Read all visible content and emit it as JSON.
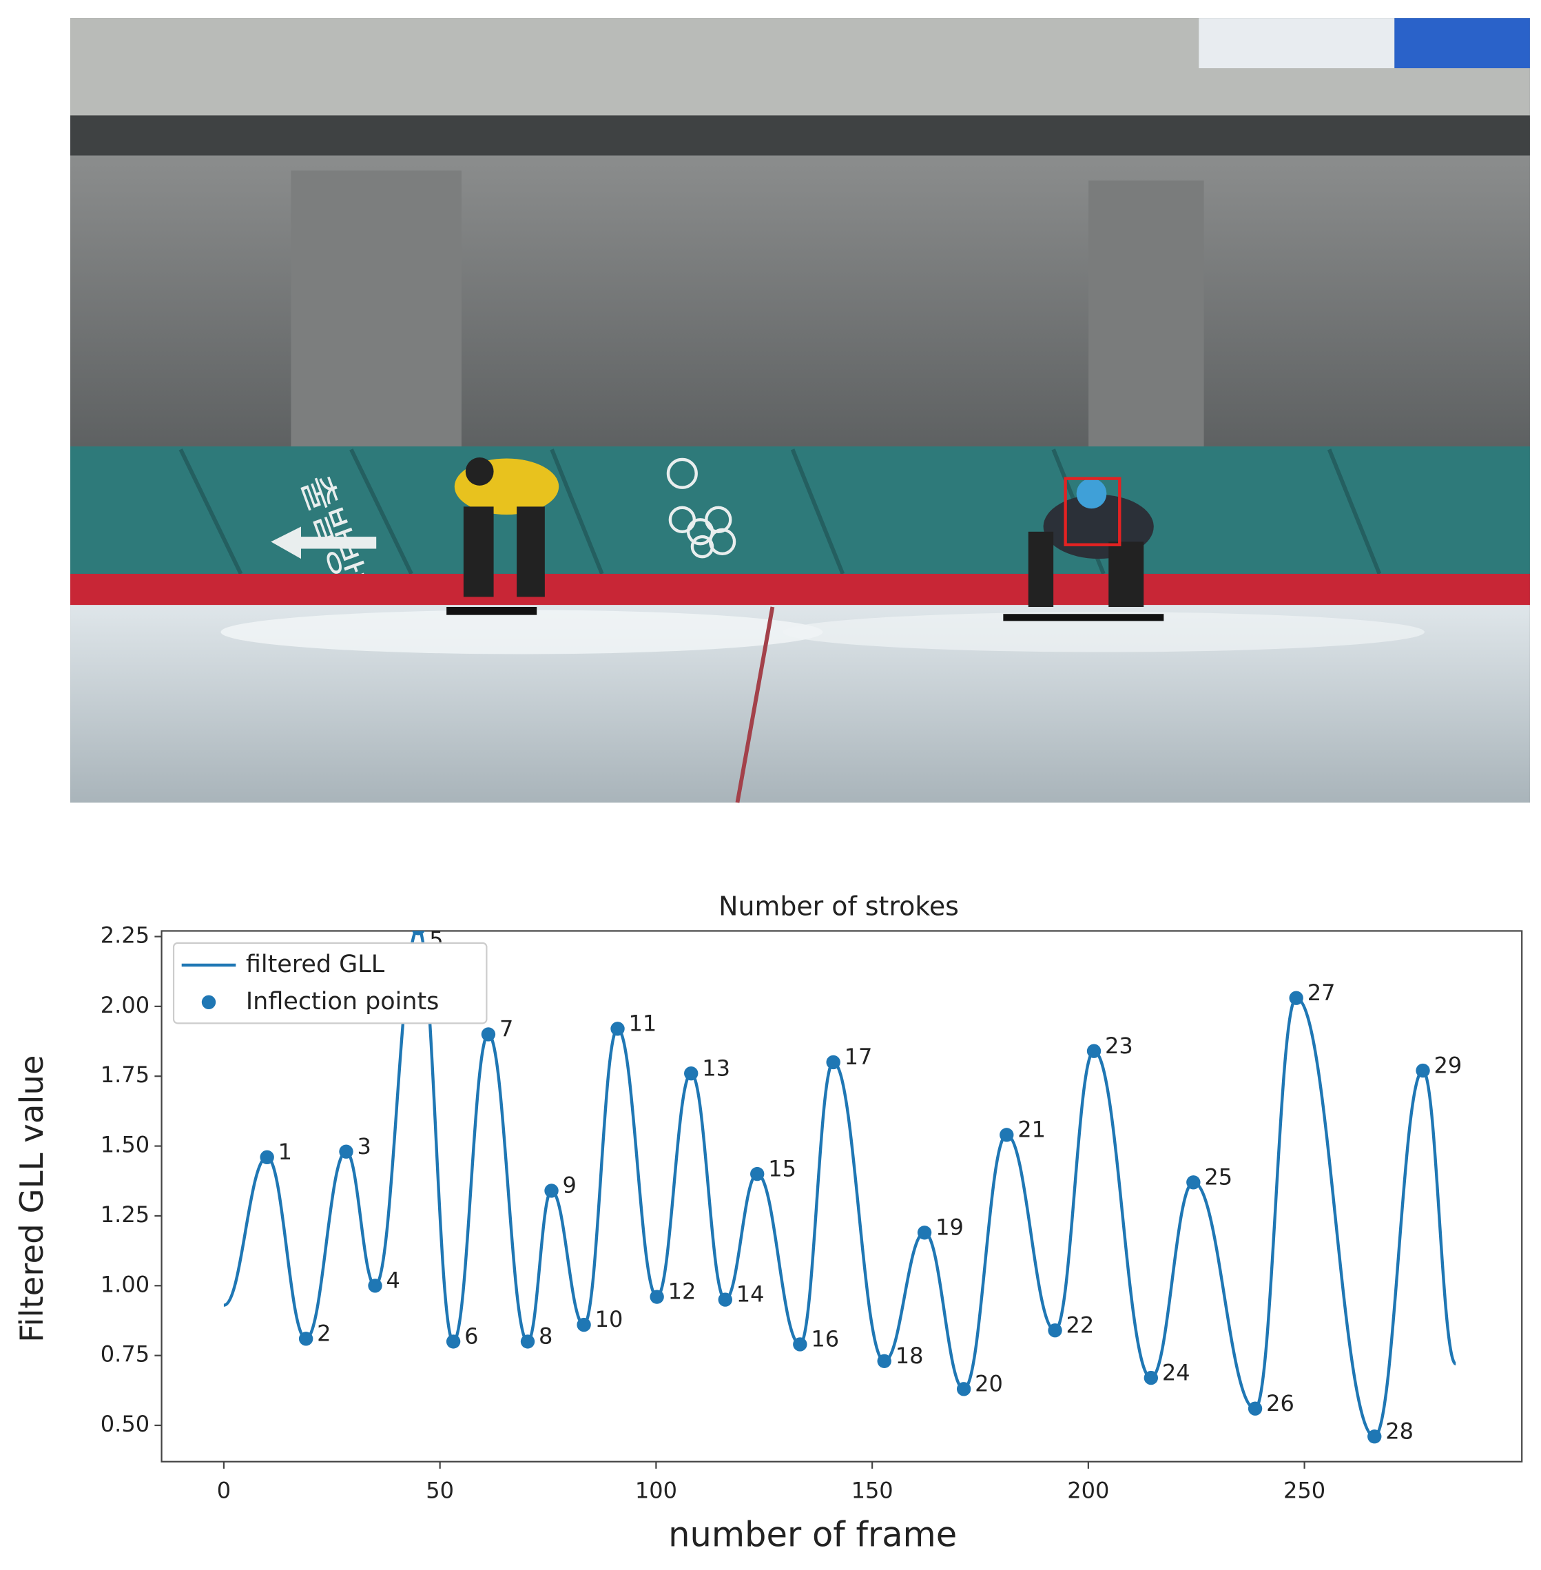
{
  "photo": {
    "sign_text": "출발방향"
  },
  "chart_data": {
    "type": "line",
    "title": "Number of strokes",
    "x_label": "number of frame",
    "y_label": "Filtered GLL value",
    "xlim": [
      -14.4,
      300.3
    ],
    "ylim": [
      0.37,
      2.27
    ],
    "xticks": [
      0,
      50,
      100,
      150,
      200,
      250
    ],
    "yticks": [
      {
        "value": 0.5,
        "label": "0.50"
      },
      0.75,
      {
        "value": 1,
        "label": "1.00"
      },
      1.25,
      {
        "value": 1.5,
        "label": "1.50"
      },
      1.75,
      {
        "value": 2,
        "label": "2.00"
      },
      2.25
    ],
    "legend": "upper left",
    "series": [
      {
        "name": "filtered GLL",
        "color": "#1f77b4",
        "type": "line",
        "x": [
          0,
          10,
          19,
          28.3,
          35,
          45,
          53.1,
          61.2,
          70.3,
          75.8,
          83.3,
          91.1,
          100.2,
          108.1,
          116,
          123.4,
          133.3,
          141,
          152.8,
          162.1,
          171.2,
          181.1,
          192.3,
          201.3,
          214.5,
          224.3,
          238.6,
          248.1,
          266.2,
          277.4,
          285
        ],
        "values": [
          0.93,
          1.46,
          0.81,
          1.48,
          1.0,
          2.28,
          0.8,
          1.9,
          0.8,
          1.34,
          0.86,
          1.92,
          0.96,
          1.76,
          0.95,
          1.4,
          0.79,
          1.8,
          0.73,
          1.19,
          0.63,
          1.54,
          0.84,
          1.84,
          0.67,
          1.37,
          0.56,
          2.03,
          0.46,
          1.77,
          0.72
        ]
      },
      {
        "name": "Inflection points",
        "color": "#1f77b4",
        "type": "scatter",
        "x": [
          10,
          19,
          28.3,
          35,
          45,
          53.1,
          61.2,
          70.3,
          75.8,
          83.3,
          91.1,
          100.2,
          108.1,
          116,
          123.4,
          133.3,
          141,
          152.8,
          162.1,
          171.2,
          181.1,
          192.3,
          201.3,
          214.5,
          224.3,
          238.6,
          248.1,
          266.2,
          277.4
        ],
        "values": [
          1.46,
          0.81,
          1.48,
          1.0,
          2.28,
          0.8,
          1.9,
          0.8,
          1.34,
          0.86,
          1.92,
          0.96,
          1.76,
          0.95,
          1.4,
          0.79,
          1.8,
          0.73,
          1.19,
          0.63,
          1.54,
          0.84,
          1.84,
          0.67,
          1.37,
          0.56,
          2.03,
          0.46,
          1.77
        ],
        "point_labels": [
          1,
          2,
          3,
          4,
          5,
          6,
          7,
          8,
          9,
          10,
          11,
          12,
          13,
          14,
          15,
          16,
          17,
          18,
          19,
          20,
          21,
          22,
          23,
          24,
          25,
          26,
          27,
          28,
          29
        ]
      }
    ]
  }
}
